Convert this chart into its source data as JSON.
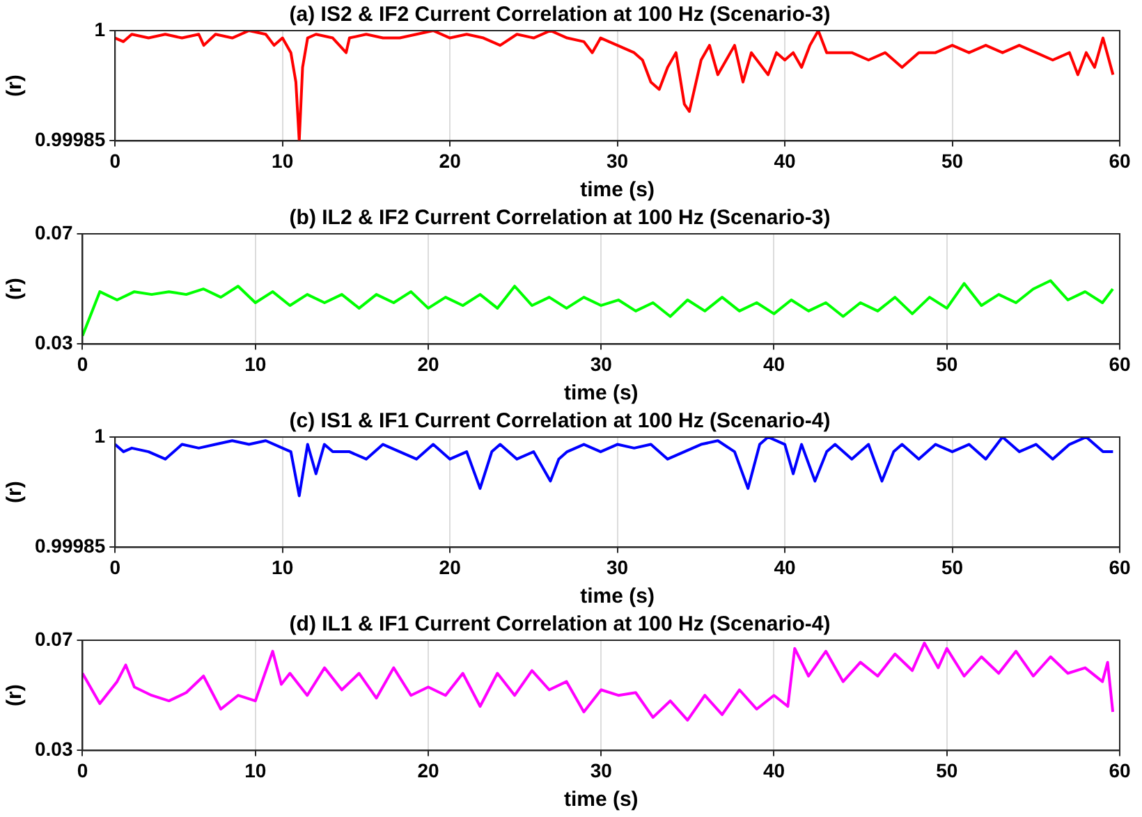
{
  "chart_data": [
    {
      "type": "line",
      "title": "(a) IS2 & IF2 Current Correlation at 100 Hz (Scenario-3)",
      "xlabel": "time (s)",
      "ylabel": "(r)",
      "xlim": [
        0,
        60
      ],
      "xticks": [
        0,
        10,
        20,
        30,
        40,
        50,
        60
      ],
      "ylim": [
        0.99985,
        1
      ],
      "yticks": [
        0.99985,
        1
      ],
      "grid": "x",
      "marker": "none",
      "line_style": "solid",
      "x": [
        0,
        0.5,
        1,
        2,
        3,
        4,
        5,
        5.3,
        6,
        7,
        8,
        9,
        9.5,
        10,
        10.5,
        10.8,
        11,
        11.2,
        11.5,
        12,
        13,
        13.8,
        14,
        15,
        16,
        17,
        18,
        19,
        20,
        21,
        22,
        23,
        24,
        25,
        26,
        27,
        28,
        28.5,
        29,
        30,
        31,
        31.5,
        32,
        32.5,
        33,
        33.5,
        34,
        34.3,
        35,
        35.5,
        36,
        36.5,
        37,
        37.5,
        38,
        39,
        39.5,
        40,
        40.5,
        41,
        41.5,
        42,
        42.5,
        43,
        44,
        45,
        46,
        47,
        48,
        49,
        50,
        51,
        52,
        53,
        54,
        55,
        56,
        57,
        57.5,
        58,
        58.5,
        59,
        59.6
      ],
      "series": [
        {
          "color": "#ff0000",
          "values": [
            0.99999,
            0.999985,
            0.999995,
            0.99999,
            0.999995,
            0.99999,
            0.999995,
            0.99998,
            0.999995,
            0.99999,
            1,
            0.999995,
            0.99998,
            0.99999,
            0.99997,
            0.99993,
            0.99985,
            0.99995,
            0.99999,
            0.999995,
            0.99999,
            0.99997,
            0.99999,
            0.999995,
            0.99999,
            0.99999,
            0.999995,
            1,
            0.99999,
            0.999995,
            0.99999,
            0.99998,
            0.999995,
            0.99999,
            1,
            0.99999,
            0.999985,
            0.99997,
            0.99999,
            0.99998,
            0.99997,
            0.99996,
            0.99993,
            0.99992,
            0.99995,
            0.99997,
            0.9999,
            0.99989,
            0.99996,
            0.99998,
            0.99994,
            0.99996,
            0.99998,
            0.99993,
            0.99997,
            0.99994,
            0.99997,
            0.99996,
            0.99997,
            0.99995,
            0.99998,
            1,
            0.99997,
            0.99997,
            0.99997,
            0.99996,
            0.99997,
            0.99995,
            0.99997,
            0.99997,
            0.99998,
            0.99997,
            0.99998,
            0.99997,
            0.99998,
            0.99997,
            0.99996,
            0.99997,
            0.99994,
            0.99997,
            0.99995,
            0.99999,
            0.99994
          ]
        }
      ]
    },
    {
      "type": "line",
      "title": "(b) IL2 & IF2 Current Correlation at 100 Hz (Scenario-3)",
      "xlabel": "time (s)",
      "ylabel": "(r)",
      "xlim": [
        0,
        60
      ],
      "xticks": [
        0,
        10,
        20,
        30,
        40,
        50,
        60
      ],
      "ylim": [
        0.03,
        0.07
      ],
      "yticks": [
        0.03,
        0.07
      ],
      "grid": "x",
      "marker": "none",
      "line_style": "solid",
      "x": [
        0,
        1,
        2,
        3,
        4,
        5,
        6,
        7,
        8,
        9,
        10,
        11,
        12,
        13,
        14,
        15,
        16,
        17,
        18,
        19,
        20,
        21,
        22,
        23,
        24,
        25,
        26,
        27,
        28,
        29,
        30,
        31,
        32,
        33,
        34,
        35,
        36,
        37,
        38,
        39,
        40,
        41,
        42,
        43,
        44,
        45,
        46,
        47,
        48,
        49,
        50,
        51,
        52,
        53,
        54,
        55,
        56,
        57,
        58,
        59,
        59.6
      ],
      "series": [
        {
          "color": "#00ff00",
          "values": [
            0.033,
            0.049,
            0.046,
            0.049,
            0.048,
            0.049,
            0.048,
            0.05,
            0.047,
            0.051,
            0.045,
            0.049,
            0.044,
            0.048,
            0.045,
            0.048,
            0.043,
            0.048,
            0.045,
            0.049,
            0.043,
            0.047,
            0.044,
            0.048,
            0.043,
            0.051,
            0.044,
            0.047,
            0.043,
            0.047,
            0.044,
            0.046,
            0.042,
            0.045,
            0.04,
            0.046,
            0.042,
            0.047,
            0.042,
            0.045,
            0.041,
            0.046,
            0.042,
            0.045,
            0.04,
            0.045,
            0.042,
            0.047,
            0.041,
            0.047,
            0.043,
            0.052,
            0.044,
            0.048,
            0.045,
            0.05,
            0.053,
            0.046,
            0.049,
            0.045,
            0.05
          ]
        }
      ]
    },
    {
      "type": "line",
      "title": "(c) IS1 & IF1 Current Correlation at 100 Hz (Scenario-4)",
      "xlabel": "time (s)",
      "ylabel": "(r)",
      "xlim": [
        0,
        60
      ],
      "xticks": [
        0,
        10,
        20,
        30,
        40,
        50,
        60
      ],
      "ylim": [
        0.99985,
        1
      ],
      "yticks": [
        0.99985,
        1
      ],
      "grid": "x",
      "marker": "none",
      "line_style": "solid",
      "x": [
        0,
        0.5,
        1,
        2,
        3,
        4,
        5,
        6,
        7,
        8,
        9,
        10,
        10.5,
        11,
        11.5,
        12,
        12.5,
        13,
        14,
        15,
        16,
        17,
        18,
        19,
        20,
        21,
        21.8,
        22.5,
        23,
        24,
        25,
        26,
        26.5,
        27,
        28,
        29,
        30,
        31,
        32,
        33,
        34,
        35,
        36,
        37,
        37.8,
        38.5,
        39,
        40,
        40.5,
        41,
        41.8,
        42.5,
        43,
        44,
        45,
        45.8,
        46.5,
        47,
        48,
        49,
        50,
        51,
        52,
        53,
        54,
        55,
        56,
        57,
        58,
        59,
        59.6
      ],
      "series": [
        {
          "color": "#0000ff",
          "values": [
            0.99999,
            0.99998,
            0.999985,
            0.99998,
            0.99997,
            0.99999,
            0.999985,
            0.99999,
            0.999995,
            0.99999,
            0.999995,
            0.999985,
            0.99998,
            0.99992,
            0.99999,
            0.99995,
            0.99999,
            0.99998,
            0.99998,
            0.99997,
            0.99999,
            0.99998,
            0.99997,
            0.99999,
            0.99997,
            0.99998,
            0.99993,
            0.99998,
            0.99999,
            0.99997,
            0.99998,
            0.99994,
            0.99997,
            0.99998,
            0.99999,
            0.99998,
            0.99999,
            0.999985,
            0.99999,
            0.99997,
            0.99998,
            0.99999,
            0.999995,
            0.99998,
            0.99993,
            0.99999,
            1,
            0.99999,
            0.99995,
            0.99999,
            0.99994,
            0.99998,
            0.99999,
            0.99997,
            0.99999,
            0.99994,
            0.99998,
            0.99999,
            0.99997,
            0.99999,
            0.99998,
            0.99999,
            0.99997,
            1,
            0.99998,
            0.99999,
            0.99997,
            0.99999,
            1,
            0.99998,
            0.99998
          ]
        }
      ]
    },
    {
      "type": "line",
      "title": "(d) IL1 & IF1 Current Correlation at 100 Hz (Scenario-4)",
      "xlabel": "time (s)",
      "ylabel": "(r)",
      "xlim": [
        0,
        60
      ],
      "xticks": [
        0,
        10,
        20,
        30,
        40,
        50,
        60
      ],
      "ylim": [
        0.03,
        0.07
      ],
      "yticks": [
        0.03,
        0.07
      ],
      "grid": "x",
      "marker": "none",
      "line_style": "solid",
      "x": [
        0,
        1,
        2,
        2.5,
        3,
        4,
        5,
        6,
        7,
        8,
        9,
        10,
        11,
        11.5,
        12,
        13,
        14,
        15,
        16,
        17,
        18,
        19,
        20,
        21,
        22,
        23,
        24,
        25,
        26,
        27,
        28,
        29,
        30,
        31,
        32,
        33,
        34,
        35,
        36,
        37,
        38,
        39,
        40,
        40.8,
        41.2,
        42,
        43,
        44,
        45,
        46,
        47,
        48,
        48.7,
        49.5,
        50,
        51,
        52,
        53,
        54,
        55,
        56,
        57,
        58,
        59,
        59.3,
        59.6
      ],
      "series": [
        {
          "color": "#ff00ff",
          "values": [
            0.058,
            0.047,
            0.055,
            0.061,
            0.053,
            0.05,
            0.048,
            0.051,
            0.057,
            0.045,
            0.05,
            0.048,
            0.066,
            0.054,
            0.058,
            0.05,
            0.06,
            0.052,
            0.058,
            0.049,
            0.06,
            0.05,
            0.053,
            0.05,
            0.058,
            0.046,
            0.058,
            0.05,
            0.059,
            0.052,
            0.055,
            0.044,
            0.052,
            0.05,
            0.051,
            0.042,
            0.048,
            0.041,
            0.05,
            0.043,
            0.052,
            0.045,
            0.05,
            0.046,
            0.067,
            0.057,
            0.066,
            0.055,
            0.062,
            0.057,
            0.065,
            0.059,
            0.069,
            0.06,
            0.067,
            0.057,
            0.064,
            0.058,
            0.066,
            0.057,
            0.064,
            0.058,
            0.06,
            0.055,
            0.062,
            0.044
          ]
        }
      ]
    }
  ]
}
